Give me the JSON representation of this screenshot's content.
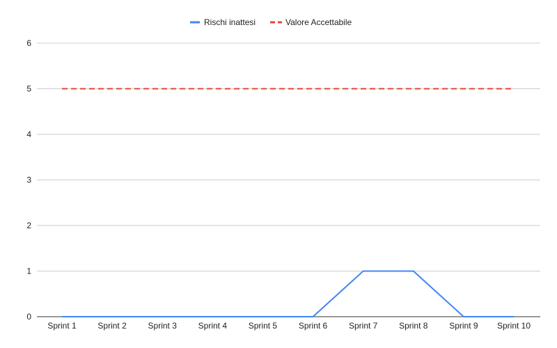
{
  "chart_data": {
    "type": "line",
    "title": "",
    "xlabel": "",
    "ylabel": "",
    "categories": [
      "Sprint 1",
      "Sprint 2",
      "Sprint 3",
      "Sprint 4",
      "Sprint 5",
      "Sprint 6",
      "Sprint 7",
      "Sprint 8",
      "Sprint 9",
      "Sprint 10"
    ],
    "ylim": [
      0,
      6
    ],
    "yticks": [
      "0",
      "1",
      "2",
      "3",
      "4",
      "5",
      "6"
    ],
    "grid": true,
    "legend_position": "top-center",
    "series": [
      {
        "name": "Rischi inattesi",
        "values": [
          0,
          0,
          0,
          0,
          0,
          0,
          1,
          1,
          0,
          0
        ],
        "color": "#4285f4",
        "style": "solid"
      },
      {
        "name": "Valore Accettabile",
        "values": [
          5,
          5,
          5,
          5,
          5,
          5,
          5,
          5,
          5,
          5
        ],
        "color": "#ea4335",
        "style": "dashed"
      }
    ]
  }
}
